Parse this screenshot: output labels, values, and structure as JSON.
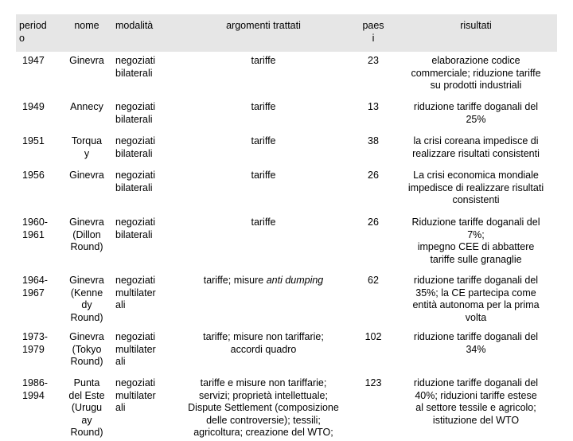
{
  "headers": {
    "period": "period\no",
    "nome": "nome",
    "modalita": "modalità",
    "argomenti": "argomenti trattati",
    "paesi": "paes\ni",
    "risultati": "risultati"
  },
  "rows": [
    {
      "period": "1947",
      "nome": "Ginevra",
      "modalita": "negoziati\nbilaterali",
      "argomenti_pre": "tariffe",
      "argomenti_em": "",
      "argomenti_post": "",
      "paesi": "23",
      "risultati": "elaborazione codice\ncommerciale; riduzione tariffe\nsu prodotti industriali"
    },
    {
      "period": "1949",
      "nome": "Annecy",
      "modalita": "negoziati\nbilaterali",
      "argomenti_pre": "tariffe",
      "argomenti_em": "",
      "argomenti_post": "",
      "paesi": "13",
      "risultati": "riduzione tariffe doganali del\n25%"
    },
    {
      "period": "1951",
      "nome": "Torqua\ny",
      "modalita": "negoziati\nbilaterali",
      "argomenti_pre": "tariffe",
      "argomenti_em": "",
      "argomenti_post": "",
      "paesi": "38",
      "risultati": "la crisi coreana impedisce di\nrealizzare risultati consistenti"
    },
    {
      "period": "1956",
      "nome": "Ginevra",
      "modalita": "negoziati\nbilaterali",
      "argomenti_pre": "tariffe",
      "argomenti_em": "",
      "argomenti_post": "",
      "paesi": "26",
      "risultati": "La crisi economica mondiale\nimpedisce di realizzare risultati\nconsistenti"
    },
    {
      "period": "1960-\n1961",
      "nome": "Ginevra\n(Dillon\nRound)",
      "modalita": "negoziati\nbilaterali",
      "argomenti_pre": "tariffe",
      "argomenti_em": "",
      "argomenti_post": "",
      "paesi": "26",
      "risultati": "Riduzione tariffe doganali del\n7%;\nimpegno CEE di abbattere\ntariffe sulle granaglie"
    },
    {
      "period": "1964-\n1967",
      "nome": "Ginevra\n(Kenne\ndy\nRound)",
      "modalita": "negoziati\nmultilater\nali",
      "argomenti_pre": "tariffe; misure ",
      "argomenti_em": "anti dumping",
      "argomenti_post": "",
      "paesi": "62",
      "risultati": "riduzione tariffe doganali del\n35%; la CE partecipa come\nentità autonoma per la prima\nvolta"
    },
    {
      "period": "1973-\n1979",
      "nome": "Ginevra\n(Tokyo\nRound)",
      "modalita": "negoziati\nmultilater\nali",
      "argomenti_pre": "tariffe; misure non tariffarie;\naccordi quadro",
      "argomenti_em": "",
      "argomenti_post": "",
      "paesi": "102",
      "risultati": "riduzione tariffe doganali del\n34%"
    },
    {
      "period": "1986-\n1994",
      "nome": "Punta\ndel Este\n(Urugu\nay\nRound)",
      "modalita": "negoziati\nmultilater\nali",
      "argomenti_pre": "tariffe e misure non tariffarie;\nservizi; proprietà intellettuale;\nDispute Settlement (composizione\ndelle controversie); tessili;\nagricoltura; creazione del WTO;",
      "argomenti_em": "",
      "argomenti_post": "",
      "paesi": "123",
      "risultati": "riduzione tariffe doganali del\n40%; riduzioni tariffe estese\nal settore tessile e agricolo;\nistituzione del WTO"
    }
  ]
}
